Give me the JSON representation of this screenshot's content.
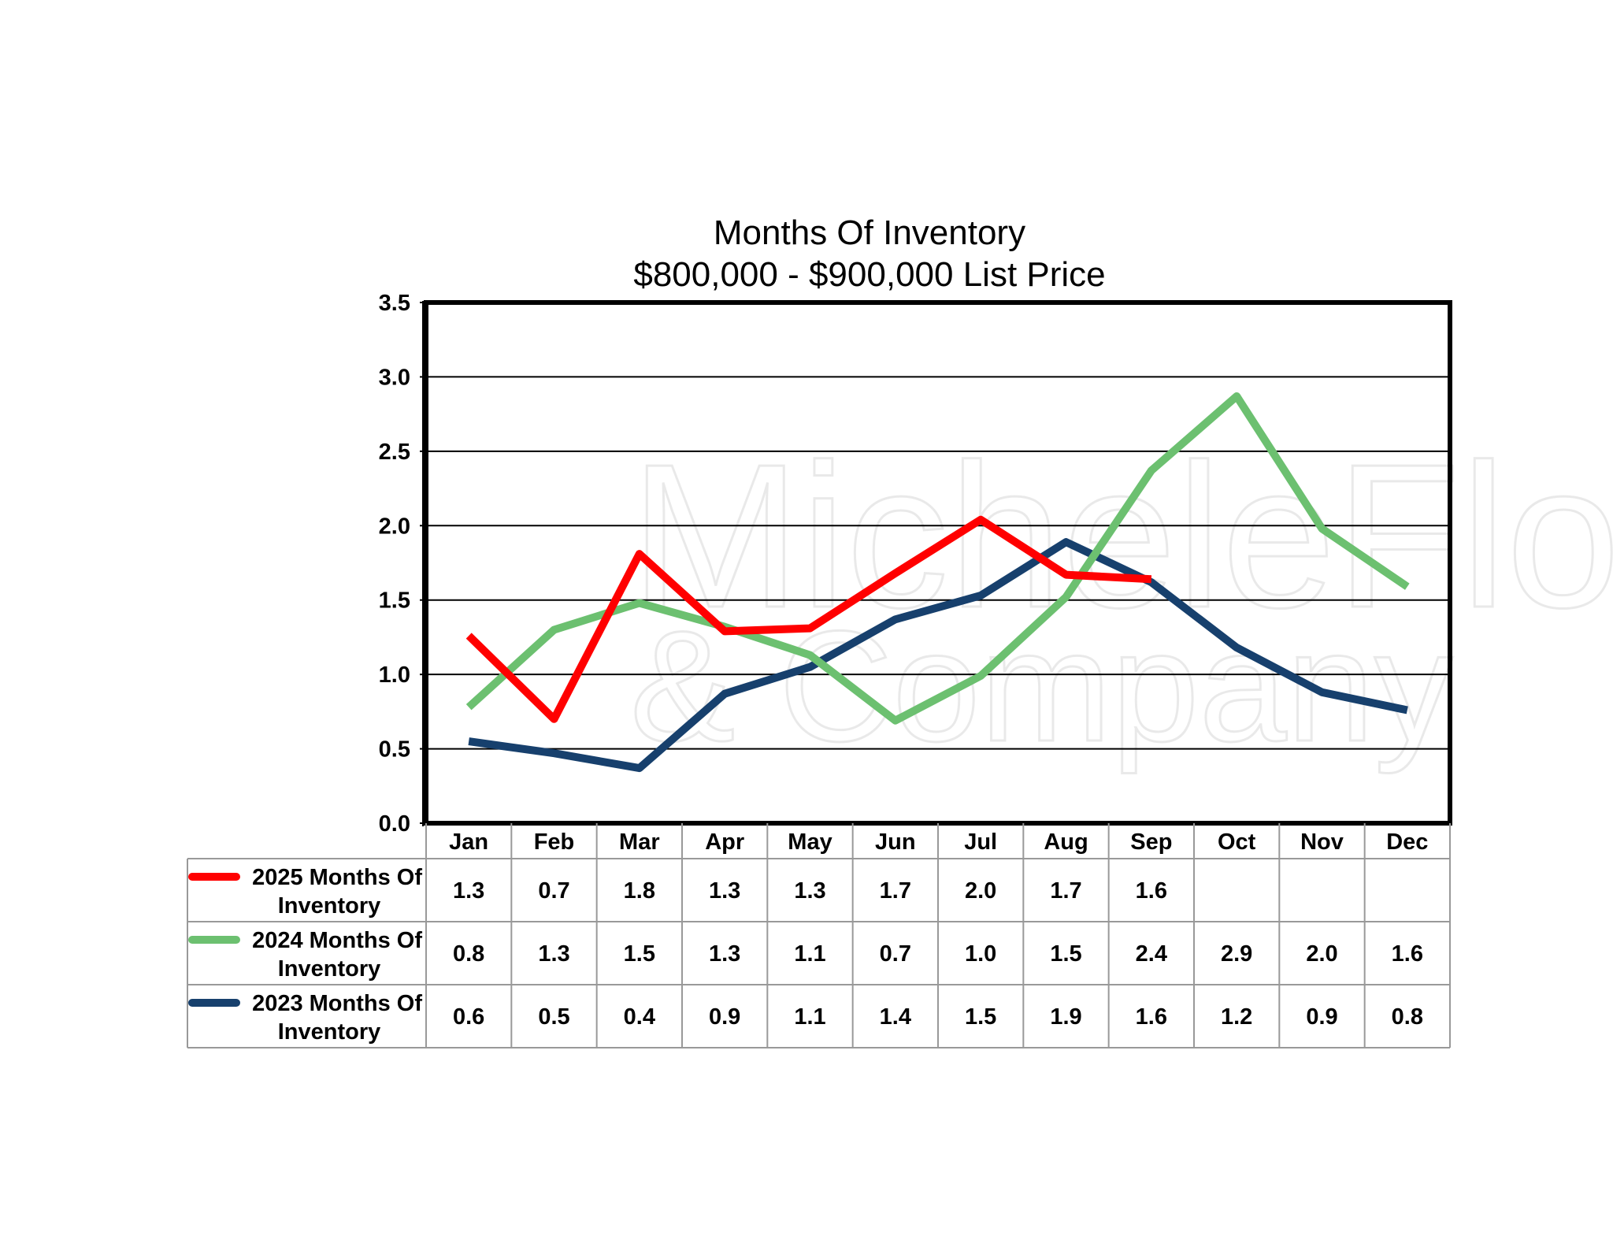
{
  "chart_data": {
    "type": "line",
    "title": "Months Of Inventory",
    "subtitle": "$800,000 - $900,000 List Price",
    "categories": [
      "Jan",
      "Feb",
      "Mar",
      "Apr",
      "May",
      "Jun",
      "Jul",
      "Aug",
      "Sep",
      "Oct",
      "Nov",
      "Dec"
    ],
    "ylim": [
      0,
      3.5
    ],
    "yticks": [
      "0.0",
      "0.5",
      "1.0",
      "1.5",
      "2.0",
      "2.5",
      "3.0",
      "3.5"
    ],
    "grid": true,
    "legend": "data-table-left",
    "series": [
      {
        "name": "2025 Months Of Inventory",
        "name_lines": [
          "2025 Months Of",
          "Inventory"
        ],
        "color": "#ff0000",
        "values": [
          1.26,
          0.7,
          1.81,
          1.29,
          1.31,
          1.68,
          2.04,
          1.67,
          1.64,
          null,
          null,
          null
        ],
        "labels": [
          "1.3",
          "0.7",
          "1.8",
          "1.3",
          "1.3",
          "1.7",
          "2.0",
          "1.7",
          "1.6",
          "",
          "",
          ""
        ]
      },
      {
        "name": "2024 Months Of Inventory",
        "name_lines": [
          "2024 Months Of",
          "Inventory"
        ],
        "color": "#6cc070",
        "values": [
          0.78,
          1.3,
          1.48,
          1.32,
          1.13,
          0.69,
          0.99,
          1.52,
          2.37,
          2.87,
          1.98,
          1.59
        ],
        "labels": [
          "0.8",
          "1.3",
          "1.5",
          "1.3",
          "1.1",
          "0.7",
          "1.0",
          "1.5",
          "2.4",
          "2.9",
          "2.0",
          "1.6"
        ]
      },
      {
        "name": "2023 Months Of Inventory",
        "name_lines": [
          "2023 Months Of",
          "Inventory"
        ],
        "color": "#17406d",
        "values": [
          0.55,
          0.47,
          0.37,
          0.87,
          1.05,
          1.37,
          1.53,
          1.89,
          1.62,
          1.18,
          0.88,
          0.76
        ],
        "labels": [
          "0.6",
          "0.5",
          "0.4",
          "0.9",
          "1.1",
          "1.4",
          "1.5",
          "1.9",
          "1.6",
          "1.2",
          "0.9",
          "0.8"
        ]
      }
    ]
  },
  "watermark": {
    "text_line1": "MicheleFlory",
    "text_line2": "& Company"
  }
}
